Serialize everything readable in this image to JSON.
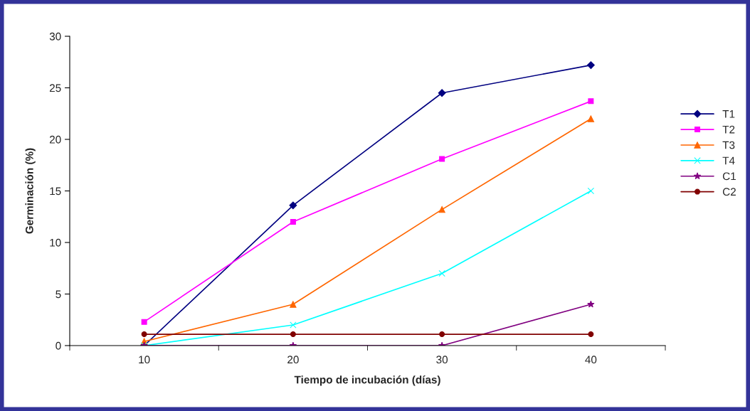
{
  "chart_data": {
    "type": "line",
    "xlabel": "Tiempo de incubación (días)",
    "ylabel": "Germinación (%)",
    "categories": [
      "10",
      "20",
      "30",
      "40"
    ],
    "ylim": [
      0,
      30
    ],
    "yticks": [
      0,
      5,
      10,
      15,
      20,
      25,
      30
    ],
    "grid": false,
    "legend": "right",
    "series": [
      {
        "name": "T1",
        "color": "#000080",
        "marker": "diamond",
        "values": [
          0,
          13.6,
          24.5,
          27.2
        ]
      },
      {
        "name": "T2",
        "color": "#ff00ff",
        "marker": "square",
        "values": [
          2.3,
          12.0,
          18.1,
          23.7
        ]
      },
      {
        "name": "T3",
        "color": "#ff6600",
        "marker": "triangle",
        "values": [
          0.4,
          4.0,
          13.2,
          22.0
        ]
      },
      {
        "name": "T4",
        "color": "#00ffff",
        "marker": "cross",
        "values": [
          0,
          2.0,
          7.0,
          15.0
        ]
      },
      {
        "name": "C1",
        "color": "#800080",
        "marker": "star",
        "values": [
          0,
          0,
          0,
          4.0
        ]
      },
      {
        "name": "C2",
        "color": "#800000",
        "marker": "circle",
        "values": [
          1.1,
          1.1,
          1.1,
          1.1
        ]
      }
    ]
  }
}
